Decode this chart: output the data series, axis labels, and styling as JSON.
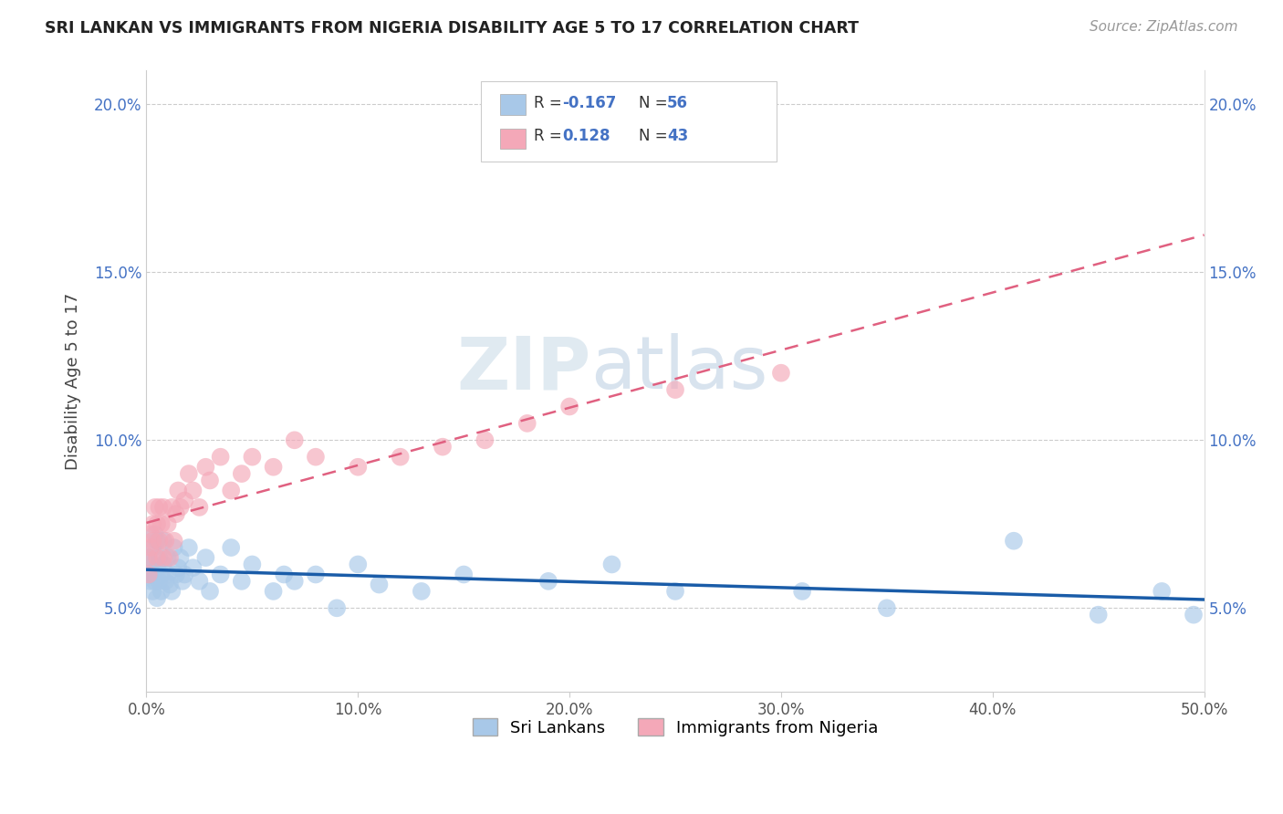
{
  "title": "SRI LANKAN VS IMMIGRANTS FROM NIGERIA DISABILITY AGE 5 TO 17 CORRELATION CHART",
  "source": "Source: ZipAtlas.com",
  "ylabel": "Disability Age 5 to 17",
  "xlim": [
    0,
    0.5
  ],
  "ylim": [
    0.025,
    0.21
  ],
  "xticks": [
    0.0,
    0.1,
    0.2,
    0.3,
    0.4,
    0.5
  ],
  "xticklabels": [
    "0.0%",
    "10.0%",
    "20.0%",
    "30.0%",
    "40.0%",
    "50.0%"
  ],
  "yticks": [
    0.05,
    0.1,
    0.15,
    0.2
  ],
  "yticklabels": [
    "5.0%",
    "10.0%",
    "15.0%",
    "20.0%"
  ],
  "sri_lankan_color": "#a8c8e8",
  "nigeria_color": "#f4a8b8",
  "sri_lankan_line_color": "#1a5ca8",
  "nigeria_line_color": "#e06080",
  "watermark_zip": "ZIP",
  "watermark_atlas": "atlas",
  "background_color": "#ffffff",
  "sri_lankans_x": [
    0.001,
    0.001,
    0.002,
    0.002,
    0.003,
    0.003,
    0.003,
    0.004,
    0.004,
    0.005,
    0.005,
    0.005,
    0.006,
    0.006,
    0.007,
    0.007,
    0.008,
    0.008,
    0.009,
    0.01,
    0.01,
    0.011,
    0.012,
    0.013,
    0.014,
    0.015,
    0.016,
    0.017,
    0.018,
    0.02,
    0.022,
    0.025,
    0.028,
    0.03,
    0.035,
    0.04,
    0.045,
    0.05,
    0.06,
    0.065,
    0.07,
    0.08,
    0.09,
    0.1,
    0.11,
    0.13,
    0.15,
    0.19,
    0.22,
    0.25,
    0.31,
    0.35,
    0.41,
    0.45,
    0.48,
    0.495
  ],
  "sri_lankans_y": [
    0.065,
    0.06,
    0.058,
    0.063,
    0.055,
    0.068,
    0.06,
    0.072,
    0.058,
    0.062,
    0.07,
    0.053,
    0.065,
    0.058,
    0.06,
    0.055,
    0.063,
    0.07,
    0.058,
    0.06,
    0.065,
    0.057,
    0.055,
    0.068,
    0.06,
    0.062,
    0.065,
    0.058,
    0.06,
    0.068,
    0.062,
    0.058,
    0.065,
    0.055,
    0.06,
    0.068,
    0.058,
    0.063,
    0.055,
    0.06,
    0.058,
    0.06,
    0.05,
    0.063,
    0.057,
    0.055,
    0.06,
    0.058,
    0.063,
    0.055,
    0.055,
    0.05,
    0.07,
    0.048,
    0.055,
    0.048
  ],
  "nigeria_x": [
    0.001,
    0.001,
    0.002,
    0.002,
    0.003,
    0.003,
    0.004,
    0.005,
    0.005,
    0.006,
    0.006,
    0.007,
    0.008,
    0.008,
    0.009,
    0.01,
    0.011,
    0.012,
    0.013,
    0.014,
    0.015,
    0.016,
    0.018,
    0.02,
    0.022,
    0.025,
    0.028,
    0.03,
    0.035,
    0.04,
    0.045,
    0.05,
    0.06,
    0.07,
    0.08,
    0.1,
    0.12,
    0.14,
    0.16,
    0.18,
    0.2,
    0.25,
    0.3
  ],
  "nigeria_y": [
    0.065,
    0.06,
    0.072,
    0.068,
    0.075,
    0.07,
    0.08,
    0.065,
    0.075,
    0.08,
    0.07,
    0.075,
    0.065,
    0.08,
    0.07,
    0.075,
    0.065,
    0.08,
    0.07,
    0.078,
    0.085,
    0.08,
    0.082,
    0.09,
    0.085,
    0.08,
    0.092,
    0.088,
    0.095,
    0.085,
    0.09,
    0.095,
    0.092,
    0.1,
    0.095,
    0.092,
    0.095,
    0.098,
    0.1,
    0.105,
    0.11,
    0.115,
    0.12
  ]
}
